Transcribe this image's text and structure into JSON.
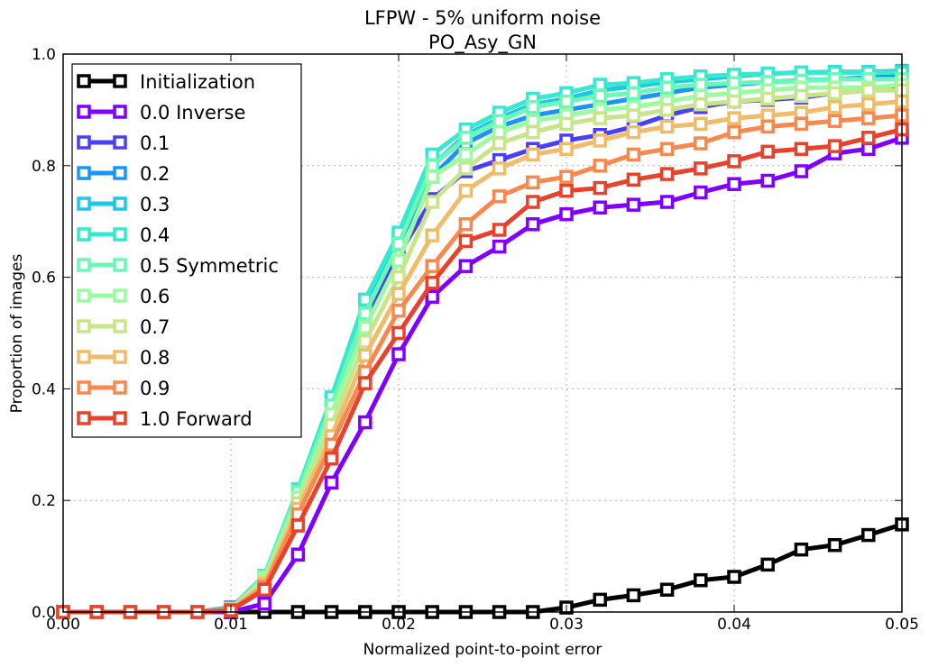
{
  "chart_data": {
    "type": "line",
    "title": "LFPW - 5% uniform noise",
    "subtitle": "PO_Asy_GN",
    "xlabel": "Normalized point-to-point error",
    "ylabel": "Proportion of images",
    "xlim": [
      0,
      0.05
    ],
    "ylim": [
      0,
      1.0
    ],
    "grid": true,
    "legend_position": "top-left",
    "x_ticks": [
      "0.00",
      "0.01",
      "0.02",
      "0.03",
      "0.04",
      "0.05"
    ],
    "y_ticks": [
      "0.0",
      "0.2",
      "0.4",
      "0.6",
      "0.8",
      "1.0"
    ],
    "x": [
      0.0,
      0.002,
      0.004,
      0.006,
      0.008,
      0.01,
      0.012,
      0.014,
      0.016,
      0.018,
      0.02,
      0.022,
      0.024,
      0.026,
      0.028,
      0.03,
      0.032,
      0.034,
      0.036,
      0.038,
      0.04,
      0.042,
      0.044,
      0.046,
      0.048,
      0.05
    ],
    "series": [
      {
        "name": "Initialization",
        "color": "#000000",
        "values": [
          0,
          0,
          0,
          0,
          0,
          0,
          0,
          0,
          0,
          0,
          0,
          0,
          0,
          0,
          0,
          0.008,
          0.022,
          0.03,
          0.04,
          0.057,
          0.063,
          0.085,
          0.112,
          0.12,
          0.138,
          0.157
        ]
      },
      {
        "name": "0.0 Inverse",
        "color": "#8000ff",
        "values": [
          0,
          0,
          0,
          0,
          0,
          0,
          0.015,
          0.103,
          0.232,
          0.34,
          0.462,
          0.565,
          0.62,
          0.655,
          0.695,
          0.713,
          0.725,
          0.73,
          0.735,
          0.752,
          0.767,
          0.773,
          0.79,
          0.822,
          0.83,
          0.85
        ]
      },
      {
        "name": "0.1",
        "color": "#4a3ff5",
        "values": [
          0,
          0,
          0,
          0,
          0,
          0.008,
          0.06,
          0.2,
          0.36,
          0.52,
          0.64,
          0.74,
          0.79,
          0.81,
          0.83,
          0.845,
          0.855,
          0.87,
          0.89,
          0.905,
          0.915,
          0.918,
          0.922,
          0.93,
          0.935,
          0.94
        ]
      },
      {
        "name": "0.2",
        "color": "#1996f3",
        "values": [
          0,
          0,
          0,
          0,
          0,
          0.007,
          0.065,
          0.21,
          0.38,
          0.54,
          0.66,
          0.78,
          0.84,
          0.87,
          0.89,
          0.9,
          0.91,
          0.92,
          0.93,
          0.94,
          0.945,
          0.95,
          0.953,
          0.955,
          0.958,
          0.96
        ]
      },
      {
        "name": "0.3",
        "color": "#1cc8e3",
        "values": [
          0,
          0,
          0,
          0,
          0,
          0.006,
          0.065,
          0.215,
          0.385,
          0.555,
          0.67,
          0.8,
          0.855,
          0.885,
          0.91,
          0.92,
          0.935,
          0.942,
          0.95,
          0.955,
          0.96,
          0.965,
          0.967,
          0.968,
          0.968,
          0.97
        ]
      },
      {
        "name": "0.4",
        "color": "#35e8cf",
        "values": [
          0,
          0,
          0,
          0,
          0,
          0.006,
          0.065,
          0.22,
          0.385,
          0.56,
          0.68,
          0.82,
          0.865,
          0.895,
          0.92,
          0.93,
          0.945,
          0.948,
          0.955,
          0.96,
          0.963,
          0.965,
          0.967,
          0.967,
          0.967,
          0.967
        ]
      },
      {
        "name": "0.5 Symmetric",
        "color": "#6af8b8",
        "values": [
          0,
          0,
          0,
          0,
          0,
          0.005,
          0.063,
          0.215,
          0.37,
          0.535,
          0.66,
          0.8,
          0.85,
          0.88,
          0.905,
          0.915,
          0.925,
          0.93,
          0.94,
          0.945,
          0.948,
          0.95,
          0.952,
          0.955,
          0.955,
          0.955
        ]
      },
      {
        "name": "0.6",
        "color": "#9bfba0",
        "values": [
          0,
          0,
          0,
          0,
          0,
          0.005,
          0.06,
          0.205,
          0.355,
          0.51,
          0.63,
          0.78,
          0.82,
          0.86,
          0.88,
          0.89,
          0.9,
          0.905,
          0.915,
          0.925,
          0.93,
          0.935,
          0.94,
          0.94,
          0.94,
          0.945
        ]
      },
      {
        "name": "0.7",
        "color": "#c8e58a",
        "values": [
          0,
          0,
          0,
          0,
          0,
          0.005,
          0.055,
          0.195,
          0.335,
          0.485,
          0.6,
          0.735,
          0.795,
          0.84,
          0.86,
          0.875,
          0.885,
          0.89,
          0.9,
          0.91,
          0.915,
          0.92,
          0.925,
          0.93,
          0.935,
          0.935
        ]
      },
      {
        "name": "0.8",
        "color": "#f0bc6a",
        "values": [
          0,
          0,
          0,
          0,
          0,
          0.004,
          0.05,
          0.185,
          0.315,
          0.46,
          0.57,
          0.675,
          0.755,
          0.795,
          0.82,
          0.83,
          0.845,
          0.86,
          0.87,
          0.875,
          0.885,
          0.89,
          0.895,
          0.905,
          0.91,
          0.915
        ]
      },
      {
        "name": "0.9",
        "color": "#f7884e",
        "values": [
          0,
          0,
          0,
          0,
          0,
          0.003,
          0.045,
          0.175,
          0.3,
          0.43,
          0.54,
          0.62,
          0.695,
          0.745,
          0.77,
          0.78,
          0.8,
          0.82,
          0.83,
          0.84,
          0.86,
          0.87,
          0.875,
          0.88,
          0.885,
          0.89
        ]
      },
      {
        "name": "1.0 Forward",
        "color": "#e8412c",
        "values": [
          0,
          0,
          0,
          0,
          0,
          0.003,
          0.04,
          0.155,
          0.275,
          0.41,
          0.5,
          0.59,
          0.665,
          0.685,
          0.735,
          0.755,
          0.76,
          0.775,
          0.785,
          0.795,
          0.808,
          0.825,
          0.83,
          0.835,
          0.85,
          0.865
        ]
      }
    ]
  }
}
